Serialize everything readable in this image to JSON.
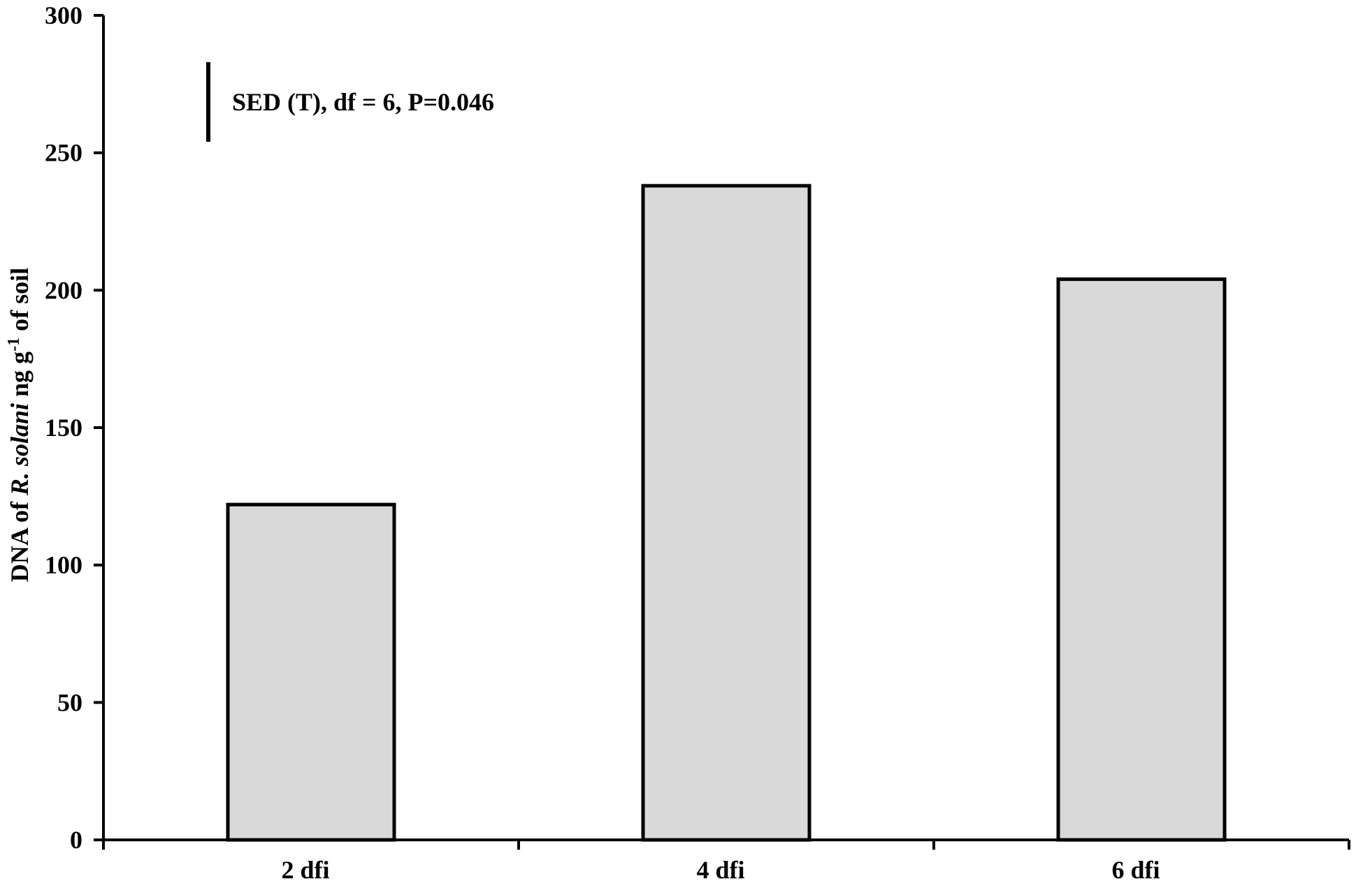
{
  "chart_data": {
    "type": "bar",
    "categories": [
      "2 dfi",
      "4 dfi",
      "6 dfi"
    ],
    "values": [
      122,
      238,
      204
    ],
    "ylim": [
      0,
      300
    ],
    "yticks": [
      0,
      50,
      100,
      150,
      200,
      250,
      300
    ],
    "ylabel": {
      "pre": "DNA of ",
      "italic": "R. solani",
      "mid": " ng g",
      "sup": "-1",
      "post": " of soil"
    },
    "xlabel": "",
    "title": "",
    "annotation": {
      "text": "SED (T), df = 6, P=0.046",
      "sed_value": 29,
      "y_bottom": 254
    },
    "grid": false,
    "colors": {
      "bar_fill": "#d9d9d9",
      "bar_stroke": "#000000",
      "axis": "#000000"
    }
  }
}
